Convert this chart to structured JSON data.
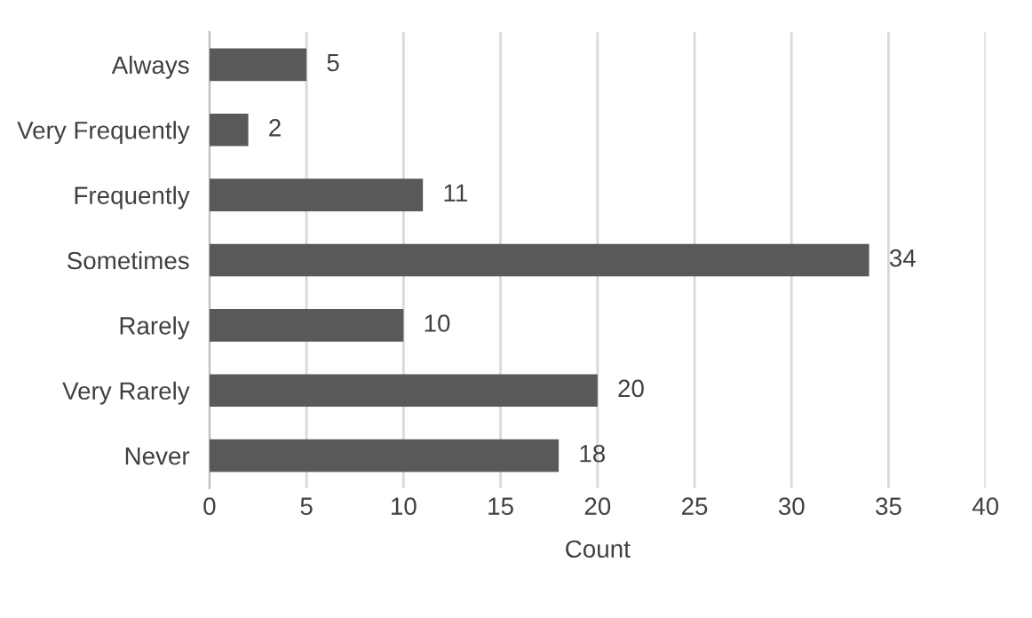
{
  "chart_data": {
    "type": "bar",
    "orientation": "horizontal",
    "xlabel": "Count",
    "categories": [
      "Always",
      "Very Frequently",
      "Frequently",
      "Sometimes",
      "Rarely",
      "Very Rarely",
      "Never"
    ],
    "values": [
      5,
      2,
      11,
      34,
      10,
      20,
      18
    ],
    "color": "#595959",
    "xlim": [
      0,
      40
    ],
    "xticks": [
      0,
      5,
      10,
      15,
      20,
      25,
      30,
      35,
      40
    ],
    "grid": "x",
    "data_labels": true,
    "legend": false
  }
}
